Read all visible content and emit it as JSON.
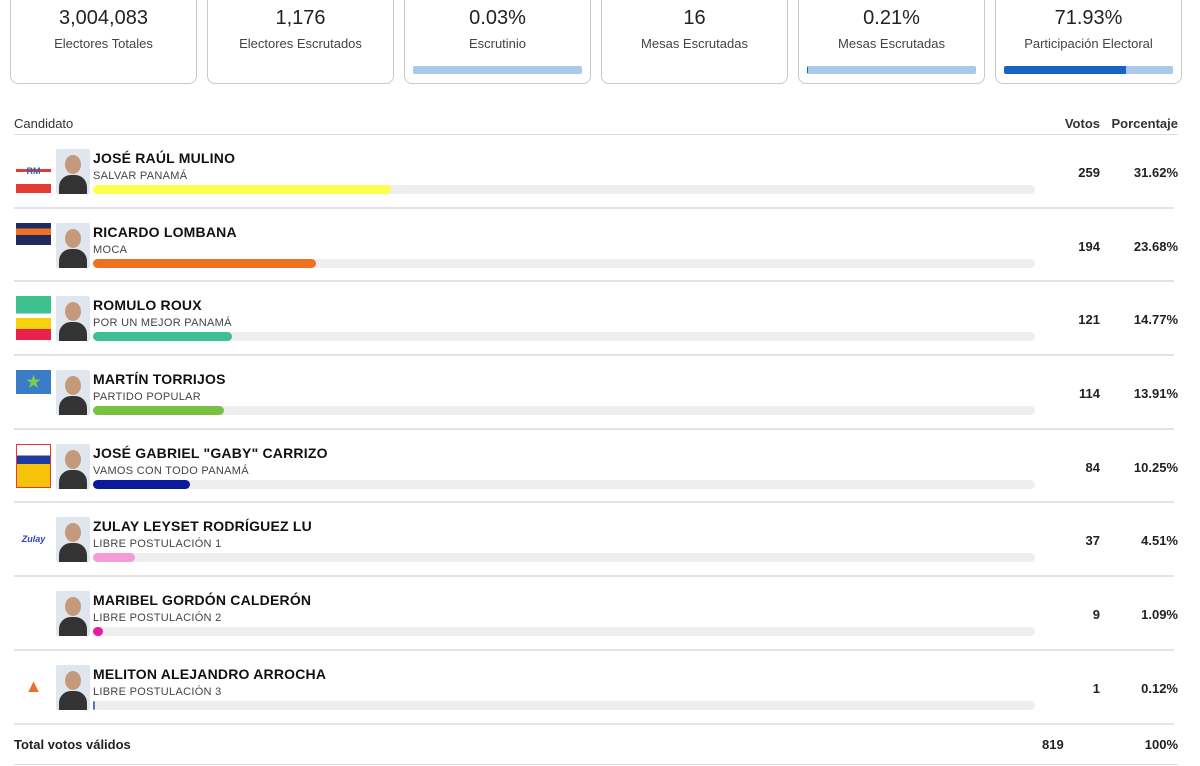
{
  "stats": [
    {
      "value": "3,004,083",
      "label": "Electores Totales"
    },
    {
      "value": "1,176",
      "label": "Electores Escrutados"
    },
    {
      "value": "0.03%",
      "label": "Escrutinio",
      "progress": 0.03
    },
    {
      "value": "16",
      "label": "Mesas Escrutadas"
    },
    {
      "value": "0.21%",
      "label": "Mesas Escrutadas",
      "progress": 0.21
    },
    {
      "value": "71.93%",
      "label": "Participación Electoral",
      "progress": 71.93
    }
  ],
  "table": {
    "col_candidate": "Candidato",
    "col_votes": "Votos",
    "col_percent": "Porcentaje"
  },
  "candidates": [
    {
      "name": "JOSÉ RAÚL MULINO",
      "party": "SALVAR PANAMÁ",
      "votes": "259",
      "percent": "31.62%",
      "share": 31.62,
      "color": "#ffff4d",
      "logo": "RM"
    },
    {
      "name": "RICARDO LOMBANA",
      "party": "MOCA",
      "votes": "194",
      "percent": "23.68%",
      "share": 23.68,
      "color": "#f07022",
      "logo": ""
    },
    {
      "name": "ROMULO ROUX",
      "party": "POR UN MEJOR PANAMÁ",
      "votes": "121",
      "percent": "14.77%",
      "share": 14.77,
      "color": "#3cc08f",
      "logo": ""
    },
    {
      "name": "MARTÍN TORRIJOS",
      "party": "PARTIDO POPULAR",
      "votes": "114",
      "percent": "13.91%",
      "share": 13.91,
      "color": "#79c143",
      "logo": ""
    },
    {
      "name": "JOSÉ GABRIEL \"GABY\" CARRIZO",
      "party": "VAMOS CON TODO PANAMÁ",
      "votes": "84",
      "percent": "10.25%",
      "share": 10.25,
      "color": "#0a1a9a",
      "logo": ""
    },
    {
      "name": "ZULAY LEYSET RODRÍGUEZ LU",
      "party": "LIBRE POSTULACIÓN 1",
      "votes": "37",
      "percent": "4.51%",
      "share": 4.51,
      "color": "#f59ad8",
      "logo": "Zulay"
    },
    {
      "name": "MARIBEL GORDÓN CALDERÓN",
      "party": "LIBRE POSTULACIÓN 2",
      "votes": "9",
      "percent": "1.09%",
      "share": 1.09,
      "color": "#e81aa6",
      "logo": ""
    },
    {
      "name": "MELITON ALEJANDRO ARROCHA",
      "party": "LIBRE POSTULACIÓN 3",
      "votes": "1",
      "percent": "0.12%",
      "share": 0.12,
      "color": "#4a7fd0",
      "logo": ""
    }
  ],
  "total": {
    "label": "Total votos válidos",
    "votes": "819",
    "percent": "100%"
  }
}
